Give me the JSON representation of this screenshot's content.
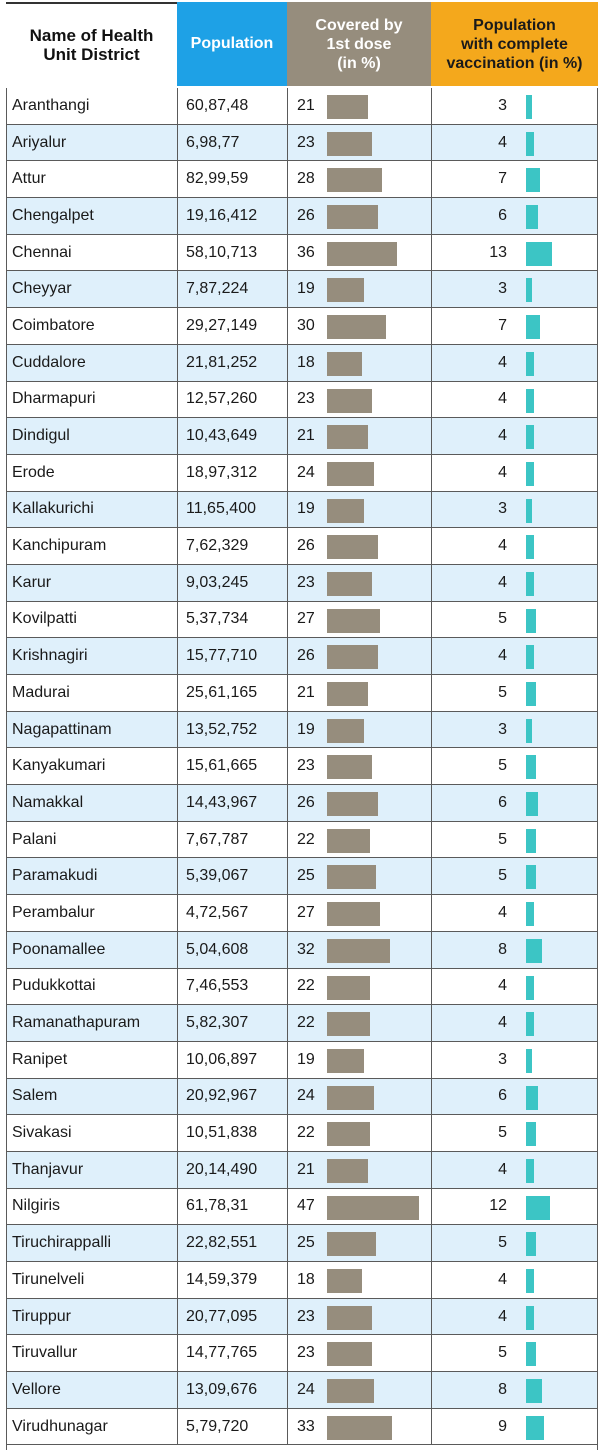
{
  "headers": {
    "name": "Name of Health\nUnit District",
    "population": "Population",
    "first_dose": "Covered by\n1st dose\n(in %)",
    "complete": "Population\nwith complete\nvaccination (in %)"
  },
  "colors": {
    "population_header": "#1ea1e6",
    "first_dose_bar": "#968d7d",
    "complete_header": "#f4a81c",
    "complete_bar": "#3cc5c5",
    "row_alt": "#dff0fb"
  },
  "chart_data": {
    "type": "table",
    "columns": [
      "Name of Health Unit District",
      "Population",
      "Covered by 1st dose (in %)",
      "Population with complete vaccination (in %)"
    ],
    "dose_scale_max": 47,
    "complete_scale_max": 13,
    "rows": [
      {
        "name": "Aranthangi",
        "population": "60,87,48",
        "first_dose": 21,
        "complete": 3
      },
      {
        "name": "Ariyalur",
        "population": "6,98,77",
        "first_dose": 23,
        "complete": 4
      },
      {
        "name": "Attur",
        "population": "82,99,59",
        "first_dose": 28,
        "complete": 7
      },
      {
        "name": "Chengalpet",
        "population": "19,16,412",
        "first_dose": 26,
        "complete": 6
      },
      {
        "name": "Chennai",
        "population": "58,10,713",
        "first_dose": 36,
        "complete": 13
      },
      {
        "name": "Cheyyar",
        "population": "7,87,224",
        "first_dose": 19,
        "complete": 3
      },
      {
        "name": "Coimbatore",
        "population": "29,27,149",
        "first_dose": 30,
        "complete": 7
      },
      {
        "name": "Cuddalore",
        "population": "21,81,252",
        "first_dose": 18,
        "complete": 4
      },
      {
        "name": "Dharmapuri",
        "population": "12,57,260",
        "first_dose": 23,
        "complete": 4
      },
      {
        "name": "Dindigul",
        "population": "10,43,649",
        "first_dose": 21,
        "complete": 4
      },
      {
        "name": "Erode",
        "population": "18,97,312",
        "first_dose": 24,
        "complete": 4
      },
      {
        "name": "Kallakurichi",
        "population": "11,65,400",
        "first_dose": 19,
        "complete": 3
      },
      {
        "name": "Kanchipuram",
        "population": "7,62,329",
        "first_dose": 26,
        "complete": 4
      },
      {
        "name": "Karur",
        "population": "9,03,245",
        "first_dose": 23,
        "complete": 4
      },
      {
        "name": "Kovilpatti",
        "population": "5,37,734",
        "first_dose": 27,
        "complete": 5
      },
      {
        "name": "Krishnagiri",
        "population": "15,77,710",
        "first_dose": 26,
        "complete": 4
      },
      {
        "name": "Madurai",
        "population": "25,61,165",
        "first_dose": 21,
        "complete": 5
      },
      {
        "name": "Nagapattinam",
        "population": "13,52,752",
        "first_dose": 19,
        "complete": 3
      },
      {
        "name": "Kanyakumari",
        "population": "15,61,665",
        "first_dose": 23,
        "complete": 5
      },
      {
        "name": "Namakkal",
        "population": "14,43,967",
        "first_dose": 26,
        "complete": 6
      },
      {
        "name": "Palani",
        "population": "7,67,787",
        "first_dose": 22,
        "complete": 5
      },
      {
        "name": "Paramakudi",
        "population": "5,39,067",
        "first_dose": 25,
        "complete": 5
      },
      {
        "name": "Perambalur",
        "population": "4,72,567",
        "first_dose": 27,
        "complete": 4
      },
      {
        "name": "Poonamallee",
        "population": "5,04,608",
        "first_dose": 32,
        "complete": 8
      },
      {
        "name": "Pudukkottai",
        "population": "7,46,553",
        "first_dose": 22,
        "complete": 4
      },
      {
        "name": "Ramanathapuram",
        "population": "5,82,307",
        "first_dose": 22,
        "complete": 4
      },
      {
        "name": "Ranipet",
        "population": "10,06,897",
        "first_dose": 19,
        "complete": 3
      },
      {
        "name": "Salem",
        "population": "20,92,967",
        "first_dose": 24,
        "complete": 6
      },
      {
        "name": "Sivakasi",
        "population": "10,51,838",
        "first_dose": 22,
        "complete": 5
      },
      {
        "name": "Thanjavur",
        "population": "20,14,490",
        "first_dose": 21,
        "complete": 4
      },
      {
        "name": "Nilgiris",
        "population": "61,78,31",
        "first_dose": 47,
        "complete": 12
      },
      {
        "name": "Tiruchirappalli",
        "population": "22,82,551",
        "first_dose": 25,
        "complete": 5
      },
      {
        "name": "Tirunelveli",
        "population": "14,59,379",
        "first_dose": 18,
        "complete": 4
      },
      {
        "name": "Tiruppur",
        "population": "20,77,095",
        "first_dose": 23,
        "complete": 4
      },
      {
        "name": "Tiruvallur",
        "population": "14,77,765",
        "first_dose": 23,
        "complete": 5
      },
      {
        "name": "Vellore",
        "population": "13,09,676",
        "first_dose": 24,
        "complete": 8
      },
      {
        "name": "Virudhunagar",
        "population": "5,79,720",
        "first_dose": 33,
        "complete": 9
      }
    ]
  }
}
